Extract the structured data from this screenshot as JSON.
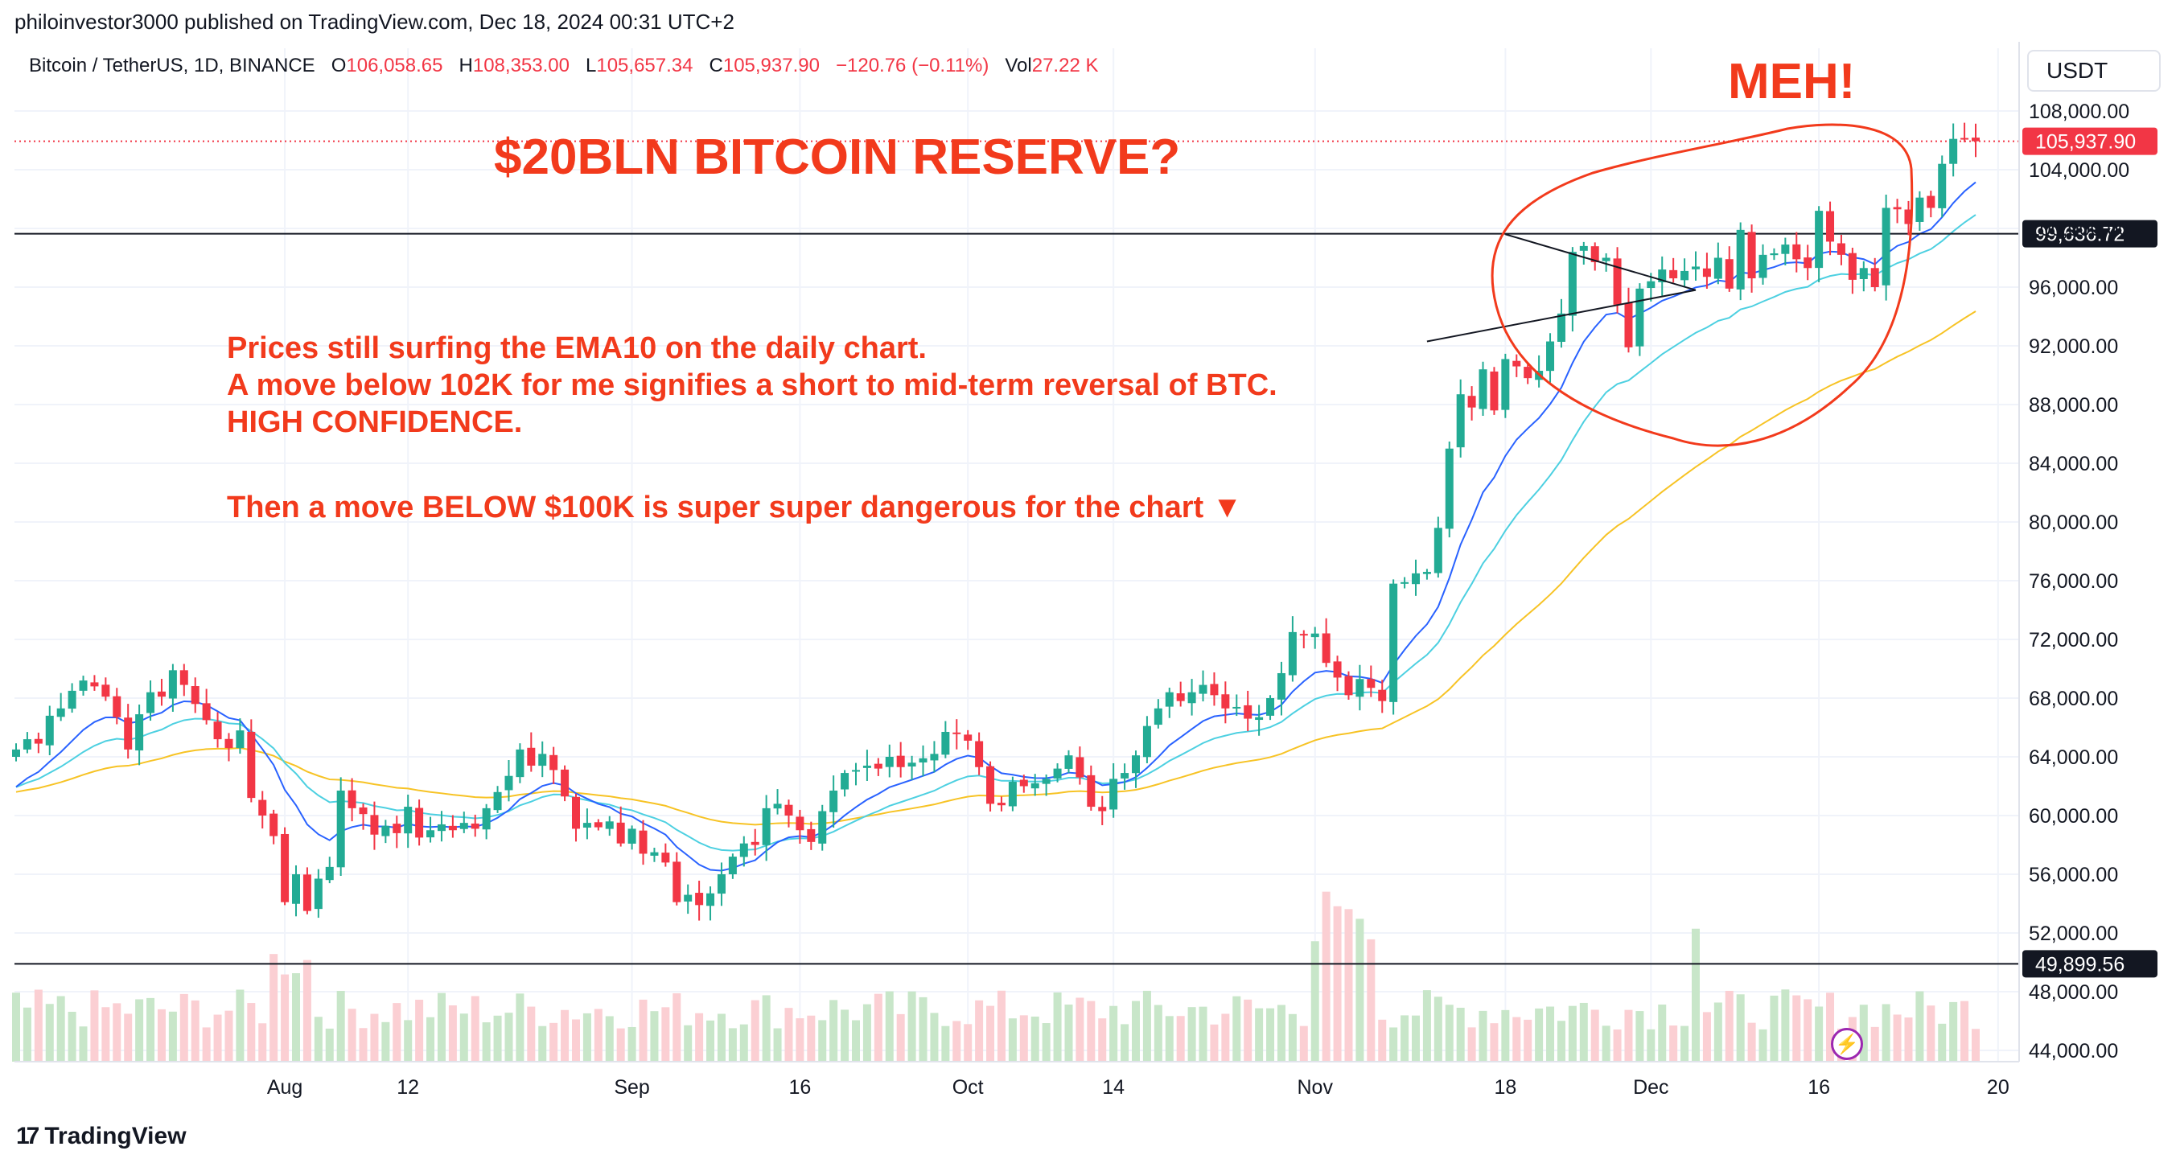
{
  "header": {
    "published": "philoinvestor3000 published on TradingView.com, Dec 18, 2024 00:31 UTC+2"
  },
  "legend": {
    "symbol": "Bitcoin / TetherUS, 1D, BINANCE",
    "o_label": "O",
    "o": "106,058.65",
    "h_label": "H",
    "h": "108,353.00",
    "l_label": "L",
    "l": "105,657.34",
    "c_label": "C",
    "c": "105,937.90",
    "change": "−120.76 (−0.11%)",
    "vol_label": "Vol",
    "vol": "27.22 K"
  },
  "currency_button": "USDT",
  "branding": {
    "logo_text": "TradingView",
    "logo_mark": "17"
  },
  "annotations": {
    "title": "$20BLN BITCOIN RESERVE?",
    "meh": "MEH!",
    "note_lines": [
      "Prices still surfing the EMA10 on the daily chart.",
      "A move below 102K for me signifies a short to mid-term reversal of BTC.",
      "HIGH CONFIDENCE.",
      "",
      "Then a move BELOW $100K is super super dangerous for the chart ▼"
    ]
  },
  "colors": {
    "up": "#22ab94",
    "down": "#f23645",
    "vol_up": "#c8e6c9",
    "vol_down": "#fbcfd3",
    "ema10": "#2962ff",
    "ema20": "#4dd0e1",
    "ema50": "#f7c325",
    "annotation": "#f23a1c",
    "grid": "#f0f3fa"
  },
  "chart_data": {
    "type": "candlestick",
    "title": "Bitcoin / TetherUS, 1D, BINANCE",
    "ylim": [
      42000,
      113000
    ],
    "y_ticks": [
      44000,
      48000,
      52000,
      56000,
      60000,
      64000,
      68000,
      72000,
      76000,
      80000,
      84000,
      88000,
      92000,
      96000,
      100000,
      104000,
      108000
    ],
    "y_tick_labels": [
      "44,000.00",
      "48,000.00",
      "52,000.00",
      "56,000.00",
      "60,000.00",
      "64,000.00",
      "68,000.00",
      "72,000.00",
      "76,000.00",
      "80,000.00",
      "84,000.00",
      "88,000.00",
      "92,000.00",
      "96,000.00",
      "100,000.00",
      "104,000.00",
      "108,000.00"
    ],
    "x_labels": [
      {
        "label": "Aug",
        "day": 24
      },
      {
        "label": "12",
        "day": 35
      },
      {
        "label": "Sep",
        "day": 55
      },
      {
        "label": "16",
        "day": 70
      },
      {
        "label": "Oct",
        "day": 85
      },
      {
        "label": "14",
        "day": 98
      },
      {
        "label": "Nov",
        "day": 116
      },
      {
        "label": "18",
        "day": 133
      },
      {
        "label": "Dec",
        "day": 146
      },
      {
        "label": "16",
        "day": 161
      },
      {
        "label": "20",
        "day": 177
      }
    ],
    "price_levels": [
      {
        "value": 99636.72,
        "label": "99,636.72",
        "style": "horizontal-line"
      },
      {
        "value": 49899.56,
        "label": "49,899.56",
        "style": "horizontal-line"
      }
    ],
    "last_price": {
      "value": 105937.9,
      "label": "105,937.90"
    },
    "closes": [
      64500,
      65200,
      64900,
      66800,
      67300,
      68500,
      69200,
      68800,
      68100,
      66700,
      64500,
      66900,
      68400,
      68100,
      69900,
      68900,
      67600,
      66500,
      65200,
      64600,
      65800,
      61200,
      60000,
      58600,
      54100,
      56000,
      53500,
      55700,
      56500,
      61700,
      60500,
      60100,
      58700,
      59300,
      58800,
      60600,
      58500,
      59000,
      59400,
      59000,
      59500,
      59100,
      60500,
      61600,
      62700,
      64500,
      63400,
      64200,
      63100,
      61300,
      59100,
      59500,
      59200,
      59600,
      58100,
      59100,
      57400,
      57500,
      56800,
      54100,
      54600,
      53900,
      54700,
      56000,
      57200,
      58100,
      58000,
      60500,
      60800,
      60000,
      59000,
      58200,
      60300,
      61700,
      62900,
      63100,
      63400,
      63200,
      64000,
      63300,
      63600,
      63900,
      64200,
      65700,
      65600,
      65100,
      63300,
      60800,
      60700,
      62300,
      62000,
      62200,
      62500,
      63200,
      64100,
      62600,
      60600,
      60300,
      62500,
      62900,
      64100,
      66100,
      67300,
      68400,
      67800,
      68400,
      68900,
      68200,
      67300,
      67400,
      66600,
      66700,
      68000,
      69700,
      72500,
      72300,
      72400,
      70400,
      69400,
      68200,
      69300,
      68700,
      67800,
      75800,
      75900,
      76500,
      76600,
      79600,
      85000,
      88700,
      87800,
      90400,
      87600,
      91100,
      90600,
      89800,
      90300,
      92300,
      94200,
      98400,
      98800,
      97700,
      98000,
      94800,
      91900,
      95900,
      96400,
      97200,
      96600,
      97100,
      97400,
      96700,
      98000,
      95900,
      99900,
      96600,
      98200,
      98300,
      98900,
      97900,
      97300,
      101200,
      99100,
      98200,
      96500,
      97300,
      96000,
      101400,
      101300,
      100300,
      102100,
      101400,
      104400,
      106100,
      106100,
      105937.9
    ],
    "volume_note": "Volume bars plotted along the bottom; larger spikes around early August, mid-November and early December."
  }
}
